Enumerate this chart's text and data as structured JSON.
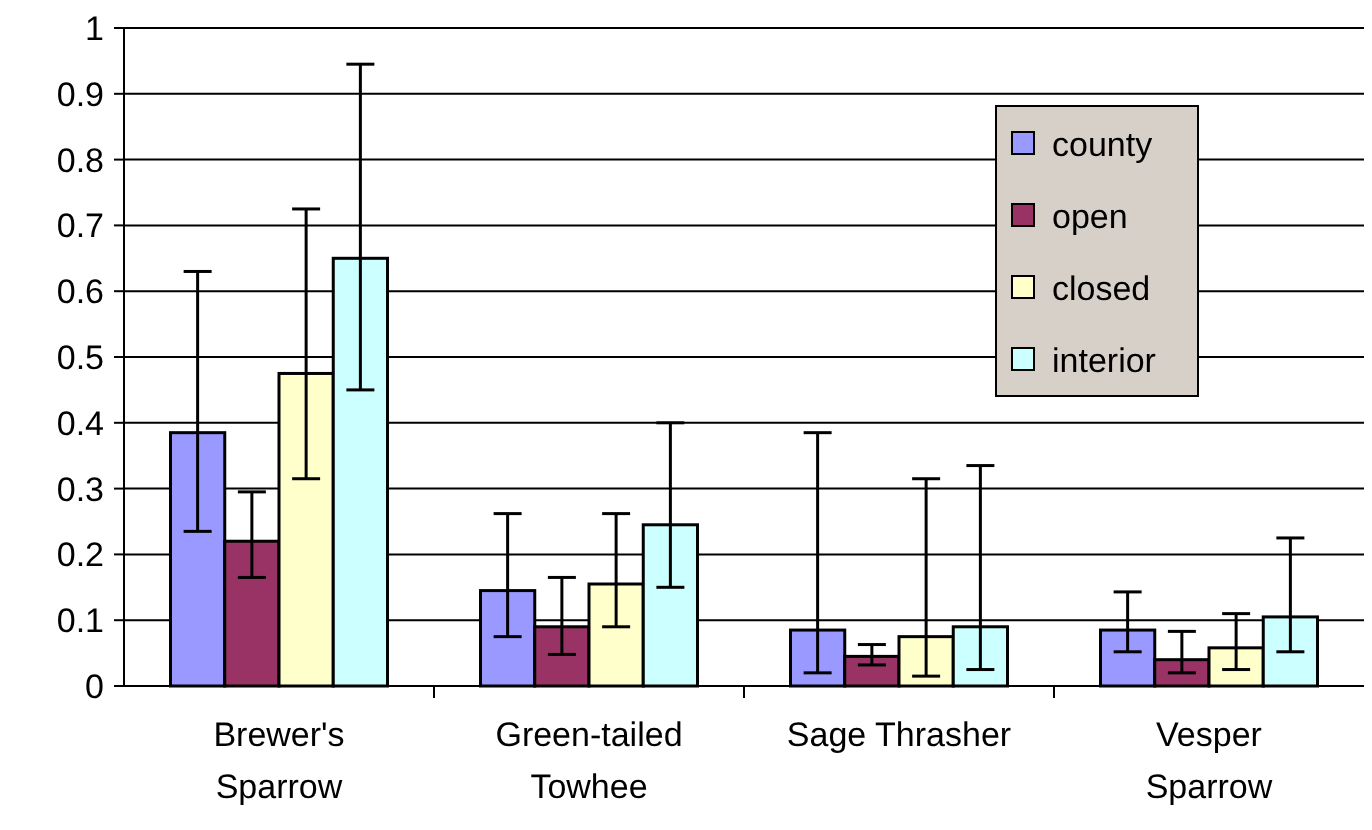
{
  "chart_data": {
    "type": "bar",
    "categories": [
      "Brewer's Sparrow",
      "Green-tailed Towhee",
      "Sage Thrasher",
      "Vesper Sparrow"
    ],
    "series": [
      {
        "name": "county",
        "color": "#9999ff",
        "values": [
          0.385,
          0.145,
          0.085,
          0.085
        ],
        "errors": [
          [
            0.235,
            0.63
          ],
          [
            0.075,
            0.262
          ],
          [
            0.02,
            0.385
          ],
          [
            0.052,
            0.143
          ]
        ]
      },
      {
        "name": "open",
        "color": "#993366",
        "values": [
          0.22,
          0.09,
          0.045,
          0.04
        ],
        "errors": [
          [
            0.165,
            0.295
          ],
          [
            0.048,
            0.165
          ],
          [
            0.032,
            0.063
          ],
          [
            0.02,
            0.083
          ]
        ]
      },
      {
        "name": "closed",
        "color": "#ffffcc",
        "values": [
          0.475,
          0.155,
          0.075,
          0.058
        ],
        "errors": [
          [
            0.315,
            0.725
          ],
          [
            0.09,
            0.262
          ],
          [
            0.015,
            0.315
          ],
          [
            0.025,
            0.11
          ]
        ]
      },
      {
        "name": "interior",
        "color": "#ccffff",
        "values": [
          0.65,
          0.245,
          0.09,
          0.105
        ],
        "errors": [
          [
            0.45,
            0.945
          ],
          [
            0.15,
            0.4
          ],
          [
            0.025,
            0.335
          ],
          [
            0.052,
            0.225
          ]
        ]
      }
    ],
    "ylim": [
      0,
      1
    ],
    "yticks": [
      0,
      0.1,
      0.2,
      0.3,
      0.4,
      0.5,
      0.6,
      0.7,
      0.8,
      0.9,
      1
    ],
    "grid": "y",
    "legend": "top right"
  }
}
